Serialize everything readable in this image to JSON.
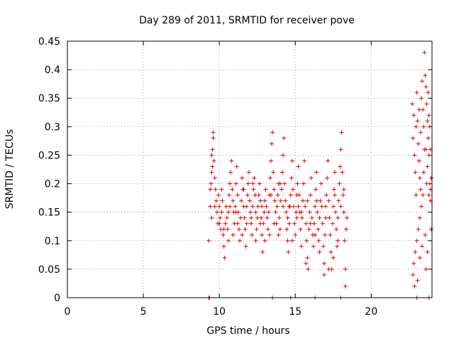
{
  "chart_data": {
    "type": "scatter",
    "title": "Day 289 of 2011, SRMTID for receiver pove",
    "xlabel": "GPS time / hours",
    "ylabel": "SRMTID / TECUs",
    "xlim": [
      0,
      24
    ],
    "ylim": [
      0,
      0.45
    ],
    "xticks": [
      0,
      5,
      10,
      15,
      20
    ],
    "yticks": [
      0,
      0.05,
      0.1,
      0.15,
      0.2,
      0.25,
      0.3,
      0.35,
      0.4,
      0.45
    ],
    "xtick_labels": [
      "0",
      "5",
      "10",
      "15",
      "20"
    ],
    "ytick_labels": [
      "0",
      "0.05",
      "0.1",
      "0.15",
      "0.2",
      "0.25",
      "0.3",
      "0.35",
      "0.4",
      "0.45"
    ],
    "grid": true,
    "marker": "+",
    "color": "#e00000",
    "series": [
      {
        "name": "SRMTID",
        "points": [
          [
            9.3,
            0.0
          ],
          [
            9.35,
            0.0
          ],
          [
            9.3,
            0.1
          ],
          [
            9.4,
            0.16
          ],
          [
            9.45,
            0.2
          ],
          [
            9.5,
            0.22
          ],
          [
            9.5,
            0.25
          ],
          [
            9.55,
            0.26
          ],
          [
            9.6,
            0.28
          ],
          [
            9.6,
            0.29
          ],
          [
            9.65,
            0.24
          ],
          [
            9.7,
            0.21
          ],
          [
            9.75,
            0.19
          ],
          [
            9.8,
            0.17
          ],
          [
            9.85,
            0.15
          ],
          [
            9.9,
            0.13
          ],
          [
            9.95,
            0.18
          ],
          [
            10.0,
            0.16
          ],
          [
            10.05,
            0.14
          ],
          [
            10.1,
            0.12
          ],
          [
            10.15,
            0.15
          ],
          [
            10.2,
            0.17
          ],
          [
            10.25,
            0.11
          ],
          [
            10.3,
            0.09
          ],
          [
            10.35,
            0.07
          ],
          [
            10.4,
            0.13
          ],
          [
            10.45,
            0.16
          ],
          [
            10.5,
            0.14
          ],
          [
            10.55,
            0.12
          ],
          [
            10.6,
            0.1
          ],
          [
            10.65,
            0.18
          ],
          [
            10.7,
            0.2
          ],
          [
            10.75,
            0.22
          ],
          [
            10.8,
            0.24
          ],
          [
            10.85,
            0.19
          ],
          [
            10.9,
            0.17
          ],
          [
            10.95,
            0.15
          ],
          [
            11.0,
            0.13
          ],
          [
            11.05,
            0.16
          ],
          [
            11.1,
            0.2
          ],
          [
            11.15,
            0.23
          ],
          [
            11.2,
            0.18
          ],
          [
            11.25,
            0.15
          ],
          [
            11.3,
            0.12
          ],
          [
            11.35,
            0.1
          ],
          [
            11.4,
            0.14
          ],
          [
            11.45,
            0.17
          ],
          [
            11.5,
            0.21
          ],
          [
            11.55,
            0.19
          ],
          [
            11.6,
            0.16
          ],
          [
            11.65,
            0.14
          ],
          [
            11.7,
            0.12
          ],
          [
            11.75,
            0.09
          ],
          [
            11.8,
            0.13
          ],
          [
            11.85,
            0.18
          ],
          [
            11.9,
            0.2
          ],
          [
            11.95,
            0.22
          ],
          [
            12.0,
            0.17
          ],
          [
            12.05,
            0.15
          ],
          [
            12.1,
            0.13
          ],
          [
            12.15,
            0.11
          ],
          [
            12.2,
            0.16
          ],
          [
            12.25,
            0.19
          ],
          [
            12.3,
            0.21
          ],
          [
            12.35,
            0.18
          ],
          [
            12.4,
            0.15
          ],
          [
            12.45,
            0.12
          ],
          [
            12.5,
            0.14
          ],
          [
            12.55,
            0.16
          ],
          [
            12.6,
            0.18
          ],
          [
            12.65,
            0.2
          ],
          [
            12.7,
            0.17
          ],
          [
            12.75,
            0.14
          ],
          [
            12.8,
            0.11
          ],
          [
            12.85,
            0.08
          ],
          [
            12.9,
            0.13
          ],
          [
            12.95,
            0.15
          ],
          [
            13.0,
            0.17
          ],
          [
            13.05,
            0.19
          ],
          [
            13.1,
            0.16
          ],
          [
            13.15,
            0.14
          ],
          [
            13.2,
            0.12
          ],
          [
            13.25,
            0.15
          ],
          [
            13.3,
            0.18
          ],
          [
            13.35,
            0.21
          ],
          [
            13.4,
            0.24
          ],
          [
            13.45,
            0.27
          ],
          [
            13.5,
            0.29
          ],
          [
            13.55,
            0.22
          ],
          [
            13.6,
            0.19
          ],
          [
            13.65,
            0.17
          ],
          [
            13.7,
            0.15
          ],
          [
            13.75,
            0.13
          ],
          [
            13.8,
            0.16
          ],
          [
            13.85,
            0.18
          ],
          [
            13.9,
            0.2
          ],
          [
            13.95,
            0.14
          ],
          [
            14.0,
            0.12
          ],
          [
            14.05,
            0.17
          ],
          [
            14.1,
            0.19
          ],
          [
            14.15,
            0.22
          ],
          [
            14.2,
            0.25
          ],
          [
            14.25,
            0.28
          ],
          [
            14.3,
            0.2
          ],
          [
            14.35,
            0.17
          ],
          [
            14.4,
            0.15
          ],
          [
            14.45,
            0.12
          ],
          [
            14.5,
            0.1
          ],
          [
            14.55,
            0.08
          ],
          [
            14.6,
            0.13
          ],
          [
            14.65,
            0.16
          ],
          [
            14.7,
            0.18
          ],
          [
            14.75,
            0.21
          ],
          [
            14.8,
            0.24
          ],
          [
            14.85,
            0.19
          ],
          [
            14.9,
            0.16
          ],
          [
            14.95,
            0.13
          ],
          [
            15.0,
            0.11
          ],
          [
            15.05,
            0.15
          ],
          [
            15.1,
            0.18
          ],
          [
            15.15,
            0.2
          ],
          [
            15.2,
            0.23
          ],
          [
            15.25,
            0.18
          ],
          [
            15.3,
            0.15
          ],
          [
            15.35,
            0.12
          ],
          [
            15.4,
            0.09
          ],
          [
            15.45,
            0.14
          ],
          [
            15.5,
            0.17
          ],
          [
            15.55,
            0.2
          ],
          [
            15.6,
            0.24
          ],
          [
            15.65,
            0.16
          ],
          [
            15.7,
            0.13
          ],
          [
            15.75,
            0.1
          ],
          [
            15.8,
            0.07
          ],
          [
            15.85,
            0.05
          ],
          [
            15.9,
            0.12
          ],
          [
            15.95,
            0.15
          ],
          [
            16.0,
            0.18
          ],
          [
            16.05,
            0.21
          ],
          [
            16.1,
            0.14
          ],
          [
            16.15,
            0.11
          ],
          [
            16.2,
            0.09
          ],
          [
            16.25,
            0.13
          ],
          [
            16.3,
            0.16
          ],
          [
            16.35,
            0.19
          ],
          [
            16.4,
            0.22
          ],
          [
            16.45,
            0.15
          ],
          [
            16.5,
            0.12
          ],
          [
            16.55,
            0.1
          ],
          [
            16.6,
            0.14
          ],
          [
            16.65,
            0.17
          ],
          [
            16.7,
            0.2
          ],
          [
            16.75,
            0.16
          ],
          [
            16.8,
            0.13
          ],
          [
            16.85,
            0.09
          ],
          [
            16.9,
            0.06
          ],
          [
            16.95,
            0.11
          ],
          [
            17.0,
            0.14
          ],
          [
            17.05,
            0.18
          ],
          [
            17.1,
            0.21
          ],
          [
            17.15,
            0.24
          ],
          [
            17.2,
            0.17
          ],
          [
            17.25,
            0.14
          ],
          [
            17.3,
            0.11
          ],
          [
            17.35,
            0.08
          ],
          [
            17.4,
            0.05
          ],
          [
            17.45,
            0.13
          ],
          [
            17.5,
            0.16
          ],
          [
            17.55,
            0.19
          ],
          [
            17.6,
            0.22
          ],
          [
            17.65,
            0.15
          ],
          [
            17.7,
            0.12
          ],
          [
            17.75,
            0.09
          ],
          [
            17.8,
            0.14
          ],
          [
            17.85,
            0.17
          ],
          [
            17.9,
            0.2
          ],
          [
            17.95,
            0.23
          ],
          [
            18.0,
            0.26
          ],
          [
            18.05,
            0.29
          ],
          [
            18.1,
            0.22
          ],
          [
            18.15,
            0.18
          ],
          [
            18.2,
            0.15
          ],
          [
            18.25,
            0.1
          ],
          [
            18.3,
            0.05
          ],
          [
            18.3,
            0.02
          ],
          [
            18.35,
            0.12
          ],
          [
            18.4,
            0.14
          ],
          [
            18.0,
            0.16
          ],
          [
            17.8,
            0.1
          ],
          [
            17.5,
            0.07
          ],
          [
            17.2,
            0.05
          ],
          [
            16.9,
            0.04
          ],
          [
            16.6,
            0.08
          ],
          [
            16.3,
            0.11
          ],
          [
            16.0,
            0.13
          ],
          [
            15.7,
            0.06
          ],
          [
            15.4,
            0.15
          ],
          [
            15.1,
            0.14
          ],
          [
            14.8,
            0.1
          ],
          [
            14.5,
            0.14
          ],
          [
            14.2,
            0.16
          ],
          [
            13.9,
            0.11
          ],
          [
            13.6,
            0.13
          ],
          [
            13.3,
            0.11
          ],
          [
            13.0,
            0.1
          ],
          [
            12.7,
            0.13
          ],
          [
            12.4,
            0.1
          ],
          [
            12.1,
            0.14
          ],
          [
            11.8,
            0.16
          ],
          [
            11.5,
            0.11
          ],
          [
            11.2,
            0.13
          ],
          [
            10.9,
            0.11
          ],
          [
            10.6,
            0.15
          ],
          [
            10.3,
            0.12
          ],
          [
            10.0,
            0.13
          ],
          [
            9.7,
            0.16
          ],
          [
            9.5,
            0.14
          ],
          [
            9.4,
            0.19
          ],
          [
            9.55,
            0.23
          ],
          [
            10.15,
            0.19
          ],
          [
            10.7,
            0.16
          ],
          [
            11.1,
            0.15
          ],
          [
            11.6,
            0.19
          ],
          [
            12.2,
            0.2
          ],
          [
            12.8,
            0.16
          ],
          [
            13.4,
            0.18
          ],
          [
            14.0,
            0.2
          ],
          [
            14.6,
            0.16
          ],
          [
            15.2,
            0.16
          ],
          [
            15.8,
            0.17
          ],
          [
            16.4,
            0.17
          ],
          [
            17.0,
            0.16
          ],
          [
            17.6,
            0.18
          ],
          [
            18.2,
            0.19
          ],
          [
            13.5,
            0.0
          ],
          [
            14.7,
            0.0
          ],
          [
            16.3,
            0.0
          ],
          [
            18.0,
            0.0
          ],
          [
            23.0,
            0.0
          ],
          [
            23.8,
            0.0
          ],
          [
            22.7,
            0.34
          ],
          [
            22.75,
            0.28
          ],
          [
            22.8,
            0.32
          ],
          [
            22.85,
            0.25
          ],
          [
            22.9,
            0.22
          ],
          [
            22.95,
            0.18
          ],
          [
            23.0,
            0.36
          ],
          [
            23.05,
            0.31
          ],
          [
            23.1,
            0.27
          ],
          [
            23.15,
            0.24
          ],
          [
            23.2,
            0.21
          ],
          [
            23.25,
            0.29
          ],
          [
            23.3,
            0.35
          ],
          [
            23.35,
            0.38
          ],
          [
            23.4,
            0.33
          ],
          [
            23.45,
            0.3
          ],
          [
            23.5,
            0.43
          ],
          [
            23.55,
            0.39
          ],
          [
            23.6,
            0.37
          ],
          [
            23.65,
            0.34
          ],
          [
            23.7,
            0.31
          ],
          [
            23.75,
            0.28
          ],
          [
            23.8,
            0.25
          ],
          [
            23.85,
            0.2
          ],
          [
            23.9,
            0.17
          ],
          [
            23.95,
            0.12
          ],
          [
            23.5,
            0.26
          ],
          [
            23.4,
            0.18
          ],
          [
            23.3,
            0.16
          ],
          [
            23.2,
            0.14
          ],
          [
            23.1,
            0.12
          ],
          [
            23.0,
            0.1
          ],
          [
            22.9,
            0.08
          ],
          [
            22.8,
            0.06
          ],
          [
            22.75,
            0.04
          ],
          [
            22.85,
            0.02
          ],
          [
            23.05,
            0.03
          ],
          [
            23.2,
            0.07
          ],
          [
            23.35,
            0.09
          ],
          [
            23.55,
            0.11
          ],
          [
            23.7,
            0.08
          ],
          [
            23.6,
            0.05
          ],
          [
            23.45,
            0.22
          ],
          [
            23.65,
            0.2
          ],
          [
            23.75,
            0.36
          ],
          [
            23.8,
            0.32
          ],
          [
            23.85,
            0.3
          ],
          [
            23.9,
            0.26
          ],
          [
            23.95,
            0.21
          ],
          [
            23.9,
            0.19
          ],
          [
            23.8,
            0.18
          ],
          [
            22.95,
            0.3
          ],
          [
            23.15,
            0.33
          ],
          [
            23.25,
            0.19
          ],
          [
            23.6,
            0.26
          ],
          [
            23.7,
            0.23
          ]
        ]
      }
    ]
  }
}
